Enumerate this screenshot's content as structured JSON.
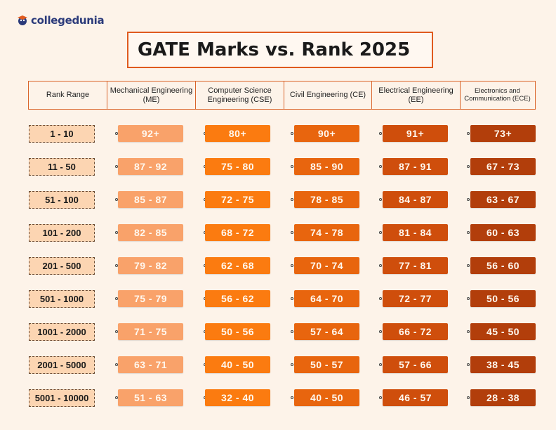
{
  "brand": {
    "logo_text": "collegedunia"
  },
  "title": "GATE Marks vs. Rank 2025",
  "headers": [
    "Rank Range",
    "Mechanical Engineering (ME)",
    "Computer Science Engineering (CSE)",
    "Civil Engineering (CE)",
    "Electrical Engineering (EE)",
    "Electronics and Communication (ECE)"
  ],
  "colors": [
    "#f9a26a",
    "#fb7b10",
    "#e8650e",
    "#cf4e0c",
    "#b23e0b"
  ],
  "rows": [
    {
      "rank": "1 - 10",
      "values": [
        "92+",
        "80+",
        "90+",
        "91+",
        "73+"
      ]
    },
    {
      "rank": "11 - 50",
      "values": [
        "87 - 92",
        "75 - 80",
        "85 - 90",
        "87 - 91",
        "67 - 73"
      ]
    },
    {
      "rank": "51 - 100",
      "values": [
        "85 - 87",
        "72 - 75",
        "78 - 85",
        "84 - 87",
        "63 - 67"
      ]
    },
    {
      "rank": "101 - 200",
      "values": [
        "82 - 85",
        "68 - 72",
        "74 - 78",
        "81 - 84",
        "60 - 63"
      ]
    },
    {
      "rank": "201 - 500",
      "values": [
        "79 - 82",
        "62 - 68",
        "70 - 74",
        "77 - 81",
        "56 - 60"
      ]
    },
    {
      "rank": "501 - 1000",
      "values": [
        "75 - 79",
        "56 - 62",
        "64 - 70",
        "72 - 77",
        "50 - 56"
      ]
    },
    {
      "rank": "1001 - 2000",
      "values": [
        "71 - 75",
        "50 - 56",
        "57 - 64",
        "66 - 72",
        "45 - 50"
      ]
    },
    {
      "rank": "2001 - 5000",
      "values": [
        "63 - 71",
        "40 - 50",
        "50 - 57",
        "57 - 66",
        "38 - 45"
      ]
    },
    {
      "rank": "5001 - 10000",
      "values": [
        "51 - 63",
        "32 - 40",
        "40 - 50",
        "46 - 57",
        "28 - 38"
      ]
    }
  ]
}
